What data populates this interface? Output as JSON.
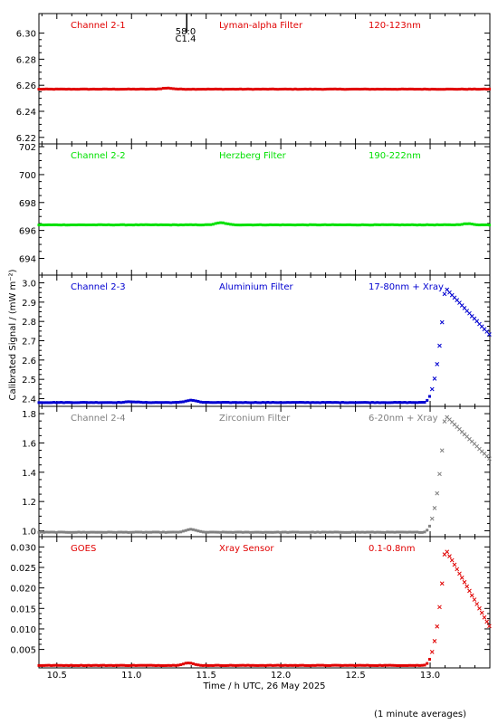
{
  "chart_data": {
    "type": "scatter",
    "xlabel": "Time / h UTC, 26 May 2025",
    "ylabel": "Calibrated Signal  / (mW m⁻²)",
    "xlim": [
      10.38,
      13.4
    ],
    "xticks": [
      10.5,
      11.0,
      11.5,
      12.0,
      12.5,
      13.0
    ],
    "xtick_labels": [
      "10.5",
      "11.0",
      "11.5",
      "12.0",
      "12.5",
      "13.0"
    ],
    "footnote": "(1 minute averages)",
    "flare_marker": {
      "x": 11.37,
      "label_top": "58:0",
      "label_bottom": "C1.4"
    },
    "panels": [
      {
        "id": "ch21",
        "labels": [
          "Channel 2-1",
          "Lyman-alpha Filter",
          "120-123nm"
        ],
        "color": "#e00000",
        "ylim": [
          6.215,
          6.315
        ],
        "yticks": [
          6.22,
          6.24,
          6.26,
          6.28,
          6.3
        ],
        "ytick_labels": [
          "6.22",
          "6.24",
          "6.26",
          "6.28",
          "6.30"
        ],
        "baseline": 6.257,
        "flare_peak": 6.257,
        "bumps": [
          [
            11.24,
            0.0008
          ]
        ]
      },
      {
        "id": "ch22",
        "labels": [
          "Channel 2-2",
          "Herzberg Filter",
          "190-222nm"
        ],
        "color": "#00e000",
        "ylim": [
          692.8,
          702.2
        ],
        "yticks": [
          694,
          696,
          698,
          700,
          702
        ],
        "ytick_labels": [
          "694",
          "696",
          "698",
          "700",
          "702"
        ],
        "baseline": 696.4,
        "flare_peak": 696.4,
        "bumps": [
          [
            11.6,
            0.15
          ],
          [
            13.25,
            0.08
          ]
        ]
      },
      {
        "id": "ch23",
        "labels": [
          "Channel 2-3",
          "Aluminium Filter",
          "17-80nm + Xray"
        ],
        "color": "#0000d0",
        "ylim": [
          2.36,
          3.04
        ],
        "yticks": [
          2.4,
          2.5,
          2.6,
          2.7,
          2.8,
          2.9,
          3.0
        ],
        "ytick_labels": [
          "2.4",
          "2.5",
          "2.6",
          "2.7",
          "2.8",
          "2.9",
          "3.0"
        ],
        "baseline": 2.38,
        "flare_peak": 2.975,
        "flare_end": 2.73,
        "bumps": [
          [
            11.4,
            0.012
          ],
          [
            11.0,
            0.004
          ]
        ]
      },
      {
        "id": "ch24",
        "labels": [
          "Channel 2-4",
          "Zirconium Filter",
          "6-20nm + Xray"
        ],
        "color": "#808080",
        "ylim": [
          0.96,
          1.85
        ],
        "yticks": [
          1.0,
          1.2,
          1.4,
          1.6,
          1.8
        ],
        "ytick_labels": [
          "1.0",
          "1.2",
          "1.4",
          "1.6",
          "1.8"
        ],
        "baseline": 0.99,
        "flare_peak": 1.79,
        "flare_end": 1.49,
        "bumps": [
          [
            11.4,
            0.02
          ]
        ]
      },
      {
        "id": "goes",
        "labels": [
          "GOES",
          "Xray Sensor",
          "0.1-0.8nm"
        ],
        "color": "#e00000",
        "ylim": [
          0.0005,
          0.0325
        ],
        "yticks": [
          0.005,
          0.01,
          0.015,
          0.02,
          0.025,
          0.03
        ],
        "ytick_labels": [
          "0.005",
          "0.010",
          "0.015",
          "0.020",
          "0.025",
          "0.030"
        ],
        "baseline": 0.0011,
        "flare_peak": 0.0297,
        "flare_end": 0.0105,
        "bumps": [
          [
            11.38,
            0.0006
          ]
        ]
      }
    ]
  }
}
